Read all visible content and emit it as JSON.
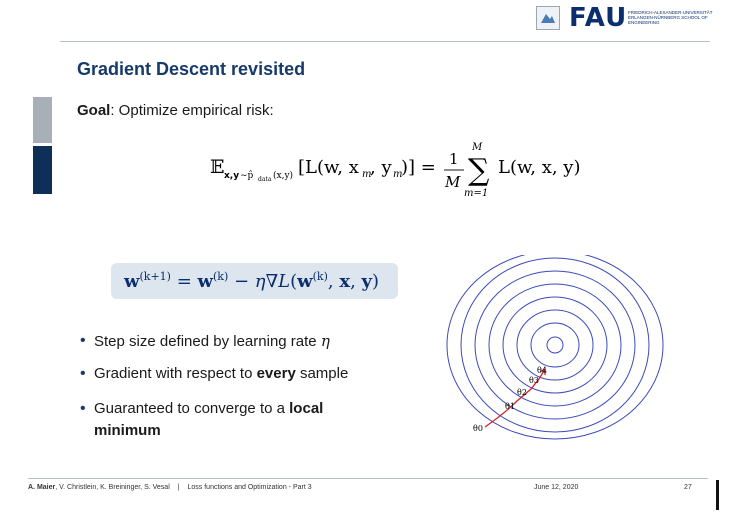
{
  "header": {
    "logo_text": "FAU",
    "logo_sub": "FRIEDRICH-ALEXANDER-UNIVERSITÄT ERLANGEN-NÜRNBERG SCHOOL OF ENGINEERING"
  },
  "slide": {
    "title": "Gradient Descent revisited",
    "goal_label": "Goal",
    "goal_text": ": Optimize empirical risk:",
    "bullets": [
      "Step size defined by learning rate ",
      "Gradient with respect to ",
      "Guaranteed to converge to a "
    ],
    "bullet1_symbol": "η",
    "bullet2_bold": "every",
    "bullet2_tail": " sample",
    "bullet3_bold_1": "local",
    "bullet3_bold_2": "minimum",
    "contour_labels": [
      "θ0",
      "θ1",
      "θ2",
      "θ3",
      "θ4"
    ]
  },
  "footer": {
    "authors_bold": "A. Maier",
    "authors_rest": ", V. Christlein, K. Breininger, S. Vesal",
    "separator": "|",
    "lecture": "Loss functions and Optimization - Part 3",
    "date": "June 12, 2020",
    "page": "27"
  },
  "colors": {
    "title": "#163a6a",
    "side_gray": "#a8afb6",
    "side_blue": "#0e2f57",
    "box": "#dde5ee",
    "contour": "#3c4bb8",
    "path": "#d21f2a"
  }
}
